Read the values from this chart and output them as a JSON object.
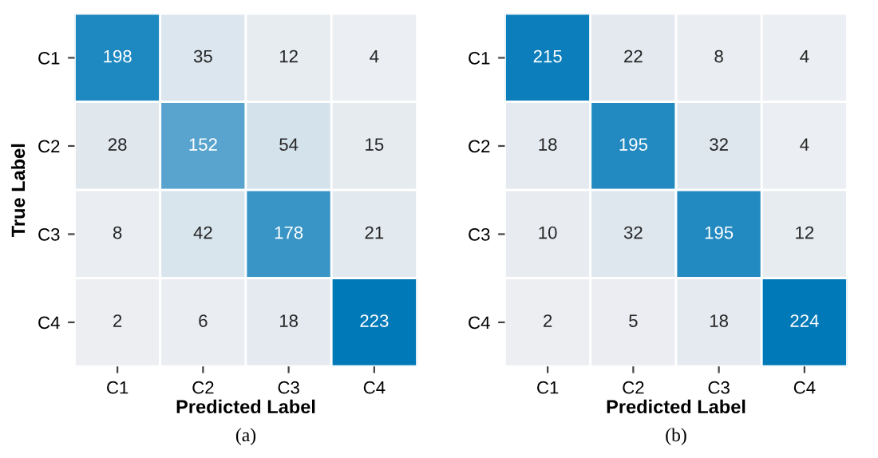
{
  "chart_data": [
    {
      "type": "heatmap",
      "xlabel": "Predicted Label",
      "ylabel": "True Label",
      "categories": [
        "C1",
        "C2",
        "C3",
        "C4"
      ],
      "y_categories": [
        "C1",
        "C2",
        "C3",
        "C4"
      ],
      "cells": [
        [
          198,
          35,
          12,
          4
        ],
        [
          28,
          152,
          54,
          15
        ],
        [
          8,
          42,
          178,
          21
        ],
        [
          2,
          6,
          18,
          223
        ]
      ],
      "data_labels": true,
      "annotations": [
        "(a)"
      ]
    },
    {
      "type": "heatmap",
      "xlabel": "Predicted Label",
      "categories": [
        "C1",
        "C2",
        "C3",
        "C4"
      ],
      "y_categories": [
        "C1",
        "C2",
        "C3",
        "C4"
      ],
      "cells": [
        [
          215,
          22,
          8,
          4
        ],
        [
          18,
          195,
          32,
          4
        ],
        [
          10,
          32,
          195,
          12
        ],
        [
          2,
          5,
          18,
          224
        ]
      ],
      "data_labels": true,
      "annotations": [
        "(b)"
      ]
    }
  ]
}
